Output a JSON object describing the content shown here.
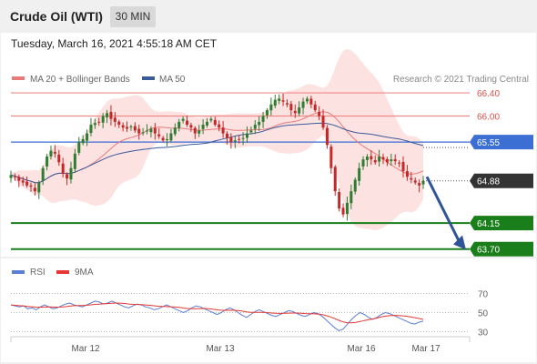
{
  "header": {
    "instrument": "Crude Oil (WTI)",
    "timeframe": "30 MIN",
    "datetime": "Tuesday, March 16, 2021 4:55:18 AM CET"
  },
  "legend": {
    "ma20_label": "MA 20 + Bollinger Bands",
    "ma50_label": "MA 50",
    "credit": "Research © 2021 Trading Central",
    "rsi_label": "RSI",
    "rsi_ma_label": "9MA"
  },
  "colors": {
    "ma20": "#e87a7a",
    "band_fill": "#fde2e2",
    "ma50": "#3a5a9a",
    "resistance": "#f08a8a",
    "pivot": "#3b6fd4",
    "support": "#1a7f1a",
    "candle_up": "#2e7d32",
    "candle_down": "#c62828",
    "rsi": "#5b7fd6",
    "rsi_ma": "#e53935",
    "arrow": "#2f5496"
  },
  "chart_data": [
    {
      "type": "candlestick",
      "x_ticks": [
        "Mar 12",
        "Mar 13",
        "Mar 16",
        "Mar 17"
      ],
      "levels": [
        {
          "value": 66.4,
          "label": "66.40",
          "kind": "resistance"
        },
        {
          "value": 66.0,
          "label": "66.00",
          "kind": "resistance"
        },
        {
          "value": 65.55,
          "label": "65.55",
          "kind": "pivot"
        },
        {
          "value": 64.88,
          "label": "64.88",
          "kind": "last"
        },
        {
          "value": 64.15,
          "label": "64.15",
          "kind": "support"
        },
        {
          "value": 63.7,
          "label": "63.70",
          "kind": "support"
        }
      ],
      "ylim": [
        63.68,
        66.48
      ],
      "close_trail": [
        64.98,
        64.95,
        64.88,
        64.85,
        64.8,
        64.78,
        64.7,
        64.85,
        65.1,
        65.3,
        65.4,
        65.35,
        65.2,
        65.0,
        64.92,
        65.1,
        65.35,
        65.55,
        65.6,
        65.7,
        65.85,
        65.88,
        65.9,
        66.0,
        66.05,
        65.95,
        65.9,
        65.85,
        65.8,
        65.78,
        65.82,
        65.75,
        65.7,
        65.72,
        65.75,
        65.78,
        65.7,
        65.65,
        65.58,
        65.6,
        65.7,
        65.8,
        65.9,
        65.95,
        65.85,
        65.8,
        65.7,
        65.75,
        65.85,
        65.9,
        65.95,
        65.85,
        65.8,
        65.7,
        65.62,
        65.55,
        65.58,
        65.6,
        65.62,
        65.7,
        65.75,
        65.85,
        65.9,
        66.0,
        66.1,
        66.2,
        66.28,
        66.3,
        66.25,
        66.2,
        66.1,
        66.05,
        66.15,
        66.25,
        66.3,
        66.2,
        66.1,
        66.0,
        65.8,
        65.5,
        65.1,
        64.7,
        64.4,
        64.3,
        64.5,
        64.7,
        64.9,
        65.1,
        65.25,
        65.3,
        65.25,
        65.2,
        65.3,
        65.25,
        65.2,
        65.25,
        65.22,
        65.18,
        65.05,
        64.95,
        64.9,
        64.85,
        64.8,
        64.88
      ],
      "last_close": 64.88,
      "forecast": {
        "from": 64.95,
        "to": 63.72
      }
    },
    {
      "type": "line",
      "name": "RSI",
      "ylim": [
        20,
        80
      ],
      "y_ticks": [
        30,
        50,
        70
      ],
      "rsi": [
        58,
        57,
        56,
        57,
        54,
        55,
        53,
        56,
        58,
        56,
        54,
        55,
        57,
        59,
        60,
        58,
        57,
        56,
        58,
        60,
        62,
        61,
        59,
        60,
        62,
        60,
        58,
        56,
        55,
        57,
        59,
        58,
        56,
        55,
        53,
        54,
        56,
        58,
        56,
        54,
        52,
        50,
        52,
        55,
        57,
        56,
        54,
        52,
        50,
        48,
        50,
        53,
        55,
        53,
        50,
        47,
        45,
        48,
        51,
        53,
        51,
        49,
        47,
        46,
        48,
        50,
        52,
        51,
        49,
        47,
        46,
        48,
        50,
        49,
        46,
        42,
        38,
        34,
        31,
        33,
        38,
        43,
        47,
        50,
        48,
        45,
        43,
        45,
        48,
        50,
        49,
        47,
        45,
        43,
        41,
        39,
        38,
        40,
        41
      ],
      "rsi_ma": [
        58,
        57.6,
        57.2,
        57,
        56.5,
        56.1,
        55.7,
        55.6,
        55.8,
        55.9,
        55.8,
        55.7,
        55.8,
        56.2,
        56.8,
        57.2,
        57.4,
        57.4,
        57.7,
        58.1,
        58.6,
        58.9,
        59.1,
        59.4,
        59.8,
        60,
        59.9,
        59.5,
        59,
        58.7,
        58.5,
        58.3,
        58,
        57.6,
        57.1,
        56.7,
        56.4,
        56.3,
        56.1,
        55.8,
        55.4,
        54.8,
        54.3,
        54,
        54,
        54.2,
        54.3,
        54.1,
        53.6,
        52.9,
        52.5,
        52.4,
        52.5,
        52.4,
        52.1,
        51.5,
        50.7,
        50.2,
        50.2,
        50.3,
        50.2,
        49.9,
        49.5,
        49.2,
        49.1,
        49.2,
        49.4,
        49.5,
        49.5,
        49.3,
        49,
        48.8,
        48.7,
        48.5,
        47.9,
        46.8,
        45.4,
        43.7,
        41.8,
        40.2,
        39.3,
        39.2,
        39.7,
        40.7,
        41.7,
        42.5,
        43.3,
        44.3,
        45.4,
        46.3,
        46.8,
        47,
        46.9,
        46.7,
        46.2,
        45.5,
        44.7,
        43.8,
        42.9
      ]
    }
  ]
}
